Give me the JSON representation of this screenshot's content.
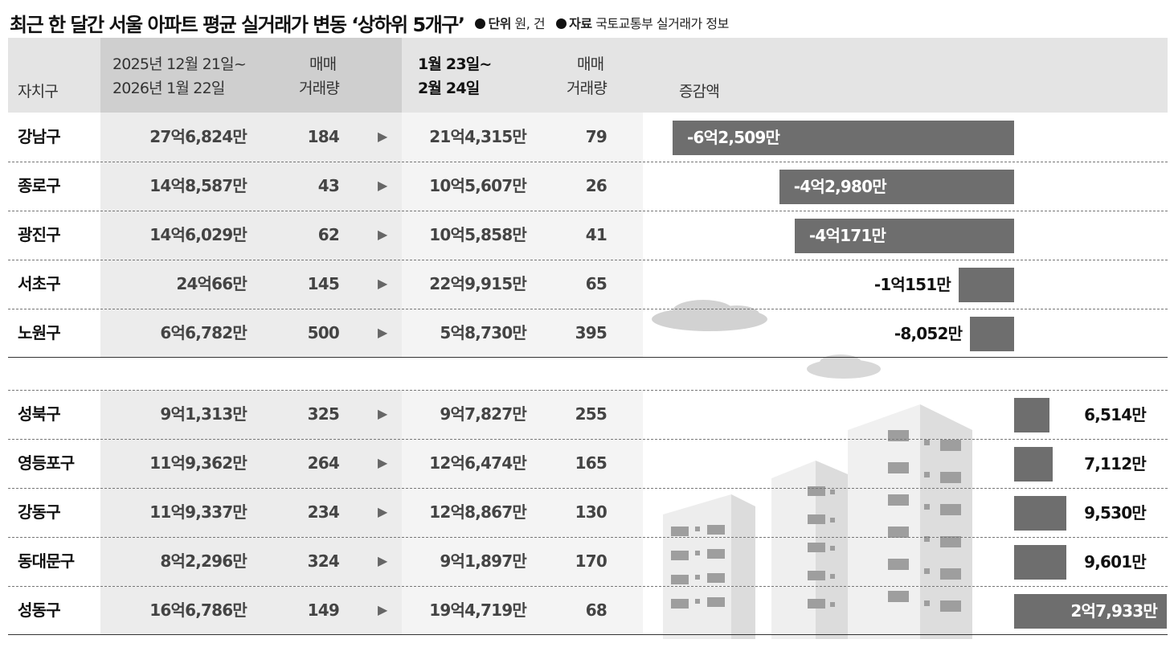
{
  "title": "최근 한 달간 서울 아파트 평균 실거래가 변동 ‘상하위 5개구’",
  "meta": {
    "unit_label": "단위",
    "unit_value": "원, 건",
    "source_label": "자료",
    "source_value": "국토교통부 실거래가 정보"
  },
  "headers": {
    "district": "자치구",
    "period1_line1": "2025년 12월 21일~",
    "period1_line2": "2026년 1월 22일",
    "volume1_line1": "매매",
    "volume1_line2": "거래량",
    "period2_line1": "1월 23일~",
    "period2_line2": "2월 24일",
    "volume2_line1": "매매",
    "volume2_line2": "거래량",
    "change": "증감액"
  },
  "colors": {
    "bar": "#6e6e6e",
    "header_bg": "#e4e4e4",
    "header_dark": "#cfcfcf"
  },
  "chart_data": {
    "type": "bar",
    "rows": [
      {
        "district": "강남구",
        "price1": "27억6,824만",
        "vol1": "184",
        "price2": "21억4,315만",
        "vol2": "79",
        "change_label": "-6억2,509만",
        "change": -62509
      },
      {
        "district": "종로구",
        "price1": "14억8,587만",
        "vol1": "43",
        "price2": "10억5,607만",
        "vol2": "26",
        "change_label": "-4억2,980만",
        "change": -42980
      },
      {
        "district": "광진구",
        "price1": "14억6,029만",
        "vol1": "62",
        "price2": "10억5,858만",
        "vol2": "41",
        "change_label": "-4억171만",
        "change": -40171
      },
      {
        "district": "서초구",
        "price1": "24억66만",
        "vol1": "145",
        "price2": "22억9,915만",
        "vol2": "65",
        "change_label": "-1억151만",
        "change": -10151
      },
      {
        "district": "노원구",
        "price1": "6억6,782만",
        "vol1": "500",
        "price2": "5억8,730만",
        "vol2": "395",
        "change_label": "-8,052만",
        "change": -8052
      },
      {
        "district": "성북구",
        "price1": "9억1,313만",
        "vol1": "325",
        "price2": "9억7,827만",
        "vol2": "255",
        "change_label": "6,514만",
        "change": 6514
      },
      {
        "district": "영등포구",
        "price1": "11억9,362만",
        "vol1": "264",
        "price2": "12억6,474만",
        "vol2": "165",
        "change_label": "7,112만",
        "change": 7112
      },
      {
        "district": "강동구",
        "price1": "11억9,337만",
        "vol1": "234",
        "price2": "12억8,867만",
        "vol2": "130",
        "change_label": "9,530만",
        "change": 9530
      },
      {
        "district": "동대문구",
        "price1": "8억2,296만",
        "vol1": "324",
        "price2": "9억1,897만",
        "vol2": "170",
        "change_label": "9,601만",
        "change": 9601
      },
      {
        "district": "성동구",
        "price1": "16억6,786만",
        "vol1": "149",
        "price2": "19억4,719만",
        "vol2": "68",
        "change_label": "2억7,933만",
        "change": 27933
      }
    ]
  }
}
